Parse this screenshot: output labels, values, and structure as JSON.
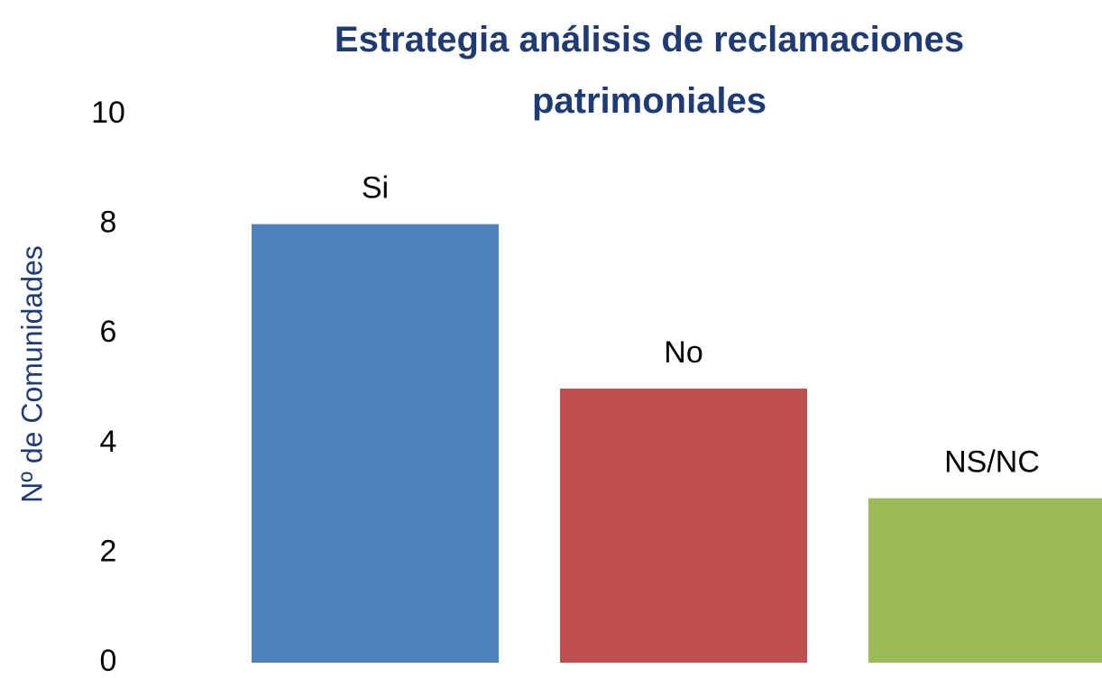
{
  "chart_data": {
    "type": "bar",
    "title": "Estrategia análisis de reclamaciones patrimoniales",
    "ylabel": "Nº de Comunidades",
    "categories": [
      "Si",
      "No",
      "NS/NC"
    ],
    "values": [
      8,
      5,
      3
    ],
    "colors": [
      "#4f81bd",
      "#c0504d",
      "#9bbb59"
    ],
    "ylim": [
      0,
      10
    ],
    "yticks": [
      0,
      2,
      4,
      6,
      8,
      10
    ],
    "grid": false
  }
}
